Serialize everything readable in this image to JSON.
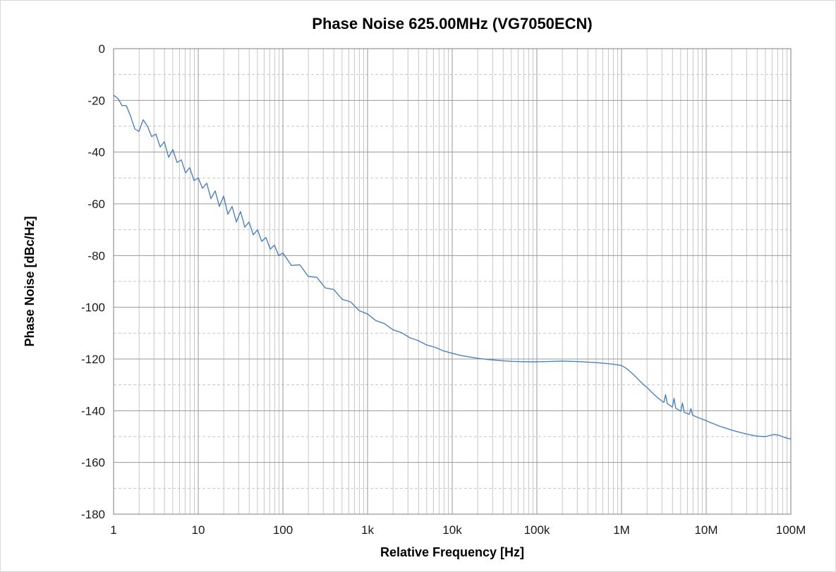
{
  "chart_data": {
    "type": "line",
    "title": "Phase Noise 625.00MHz (VG7050ECN)",
    "xlabel": "Relative Frequency [Hz]",
    "ylabel": "Phase Noise [dBc/Hz]",
    "x_scale": "log",
    "x_range_log10": [
      0,
      8
    ],
    "ylim": [
      -180,
      0
    ],
    "y_major_step": 20,
    "y_minor_step": 10,
    "x_tick_labels": [
      "1",
      "10",
      "100",
      "1k",
      "10k",
      "100k",
      "1M",
      "10M",
      "100M"
    ],
    "y_tick_labels": [
      "0",
      "-20",
      "-40",
      "-60",
      "-80",
      "-100",
      "-120",
      "-140",
      "-160",
      "-180"
    ],
    "grid": {
      "major": true,
      "minor": true,
      "legend": "none"
    },
    "style": {
      "line": "#4f81bd",
      "line_width": 1.4,
      "grid_major": "#9a9a9a",
      "grid_minor": "#c6c6c6",
      "plot_border": "#7f7f7f",
      "text": "#1a1a1a",
      "background": "#ffffff",
      "outer_border": "#d9d9d9"
    },
    "series": [
      {
        "points_log10x_dbc": [
          [
            0.0,
            -18.0
          ],
          [
            0.05,
            -19.2
          ],
          [
            0.1,
            -22.0
          ],
          [
            0.15,
            -22.0
          ],
          [
            0.2,
            -26.0
          ],
          [
            0.25,
            -31.0
          ],
          [
            0.3,
            -32.0
          ],
          [
            0.35,
            -27.5
          ],
          [
            0.4,
            -30.0
          ],
          [
            0.45,
            -34.0
          ],
          [
            0.5,
            -33.0
          ],
          [
            0.55,
            -38.0
          ],
          [
            0.6,
            -36.0
          ],
          [
            0.65,
            -42.0
          ],
          [
            0.7,
            -39.0
          ],
          [
            0.75,
            -44.0
          ],
          [
            0.8,
            -43.0
          ],
          [
            0.85,
            -48.0
          ],
          [
            0.9,
            -46.0
          ],
          [
            0.95,
            -51.0
          ],
          [
            1.0,
            -50.0
          ],
          [
            1.05,
            -54.0
          ],
          [
            1.1,
            -52.0
          ],
          [
            1.15,
            -58.0
          ],
          [
            1.2,
            -55.0
          ],
          [
            1.25,
            -61.0
          ],
          [
            1.3,
            -57.0
          ],
          [
            1.35,
            -64.0
          ],
          [
            1.4,
            -61.0
          ],
          [
            1.45,
            -67.0
          ],
          [
            1.5,
            -63.0
          ],
          [
            1.55,
            -69.0
          ],
          [
            1.6,
            -67.0
          ],
          [
            1.65,
            -72.0
          ],
          [
            1.7,
            -70.0
          ],
          [
            1.75,
            -74.5
          ],
          [
            1.8,
            -73.0
          ],
          [
            1.85,
            -77.5
          ],
          [
            1.9,
            -76.0
          ],
          [
            1.95,
            -80.0
          ],
          [
            2.0,
            -79.0
          ],
          [
            2.1,
            -83.8
          ],
          [
            2.2,
            -83.6
          ],
          [
            2.3,
            -88.1
          ],
          [
            2.4,
            -88.4
          ],
          [
            2.5,
            -92.5
          ],
          [
            2.6,
            -93.1
          ],
          [
            2.7,
            -96.9
          ],
          [
            2.8,
            -97.9
          ],
          [
            2.9,
            -101.3
          ],
          [
            3.0,
            -102.6
          ],
          [
            3.1,
            -105.2
          ],
          [
            3.2,
            -106.3
          ],
          [
            3.3,
            -108.7
          ],
          [
            3.4,
            -109.8
          ],
          [
            3.5,
            -111.8
          ],
          [
            3.6,
            -112.9
          ],
          [
            3.7,
            -114.6
          ],
          [
            3.8,
            -115.5
          ],
          [
            3.9,
            -116.9
          ],
          [
            4.0,
            -117.8
          ],
          [
            4.1,
            -118.6
          ],
          [
            4.2,
            -119.2
          ],
          [
            4.3,
            -119.7
          ],
          [
            4.4,
            -120.1
          ],
          [
            4.5,
            -120.4
          ],
          [
            4.6,
            -120.7
          ],
          [
            4.7,
            -120.9
          ],
          [
            4.8,
            -121.0
          ],
          [
            4.9,
            -121.1
          ],
          [
            5.0,
            -121.1
          ],
          [
            5.1,
            -121.0
          ],
          [
            5.2,
            -120.9
          ],
          [
            5.3,
            -120.8
          ],
          [
            5.4,
            -120.9
          ],
          [
            5.5,
            -121.0
          ],
          [
            5.6,
            -121.2
          ],
          [
            5.7,
            -121.4
          ],
          [
            5.8,
            -121.7
          ],
          [
            5.9,
            -122.0
          ],
          [
            6.0,
            -122.5
          ],
          [
            6.05,
            -123.5
          ],
          [
            6.1,
            -124.8
          ],
          [
            6.15,
            -126.3
          ],
          [
            6.2,
            -128.0
          ],
          [
            6.25,
            -129.6
          ],
          [
            6.3,
            -131.0
          ],
          [
            6.35,
            -132.6
          ],
          [
            6.4,
            -134.2
          ],
          [
            6.45,
            -135.6
          ],
          [
            6.5,
            -136.8
          ],
          [
            6.52,
            -133.8
          ],
          [
            6.54,
            -137.2
          ],
          [
            6.6,
            -138.6
          ],
          [
            6.62,
            -135.2
          ],
          [
            6.64,
            -139.0
          ],
          [
            6.7,
            -140.2
          ],
          [
            6.72,
            -137.0
          ],
          [
            6.74,
            -140.6
          ],
          [
            6.8,
            -141.4
          ],
          [
            6.82,
            -139.2
          ],
          [
            6.84,
            -141.7
          ],
          [
            6.9,
            -142.6
          ],
          [
            7.0,
            -143.8
          ],
          [
            7.05,
            -144.6
          ],
          [
            7.1,
            -145.2
          ],
          [
            7.15,
            -145.9
          ],
          [
            7.2,
            -146.4
          ],
          [
            7.3,
            -147.5
          ],
          [
            7.4,
            -148.4
          ],
          [
            7.5,
            -149.2
          ],
          [
            7.6,
            -149.8
          ],
          [
            7.7,
            -150.0
          ],
          [
            7.75,
            -149.6
          ],
          [
            7.8,
            -149.2
          ],
          [
            7.85,
            -149.4
          ],
          [
            7.9,
            -150.0
          ],
          [
            7.95,
            -150.6
          ],
          [
            8.0,
            -150.9
          ]
        ]
      }
    ]
  }
}
